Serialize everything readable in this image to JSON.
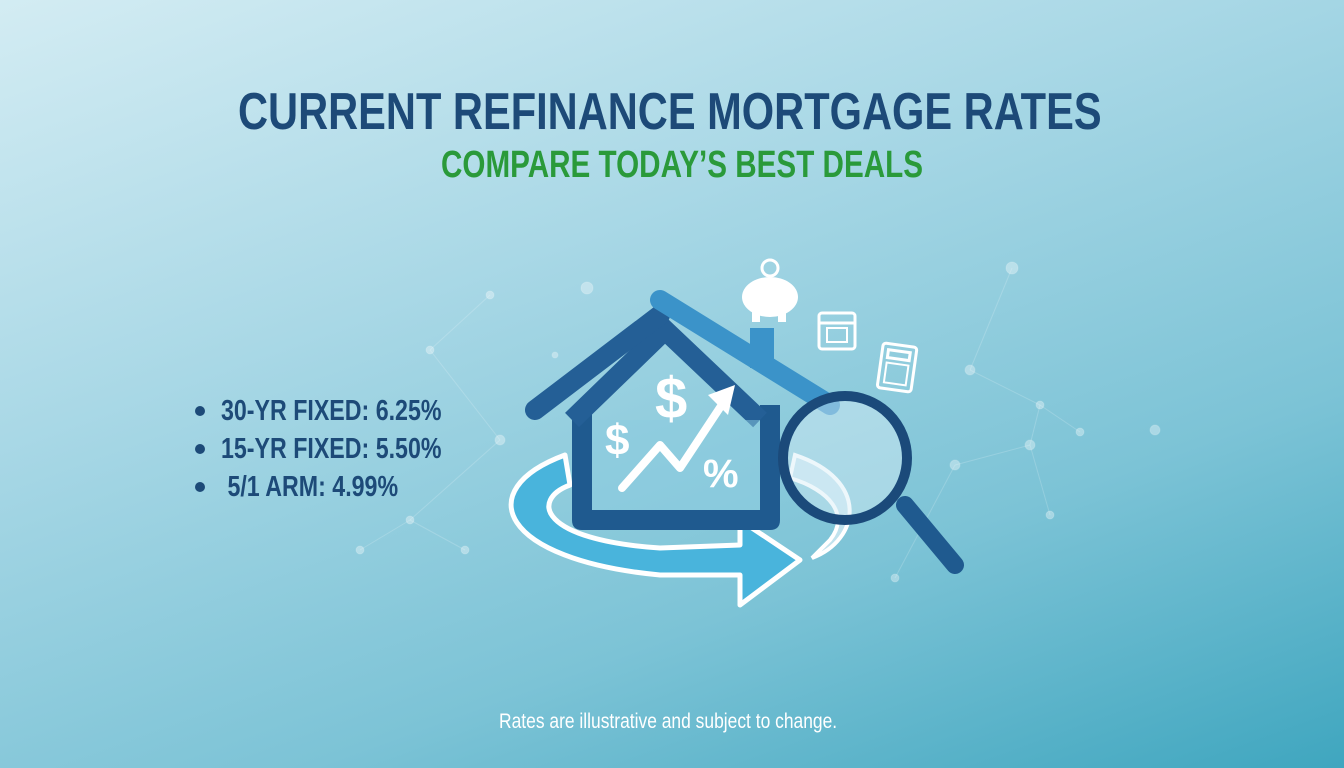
{
  "header": {
    "title": "CURRENT REFINANCE MORTGAGE RATES",
    "subtitle": "COMPARE TODAY’S BEST DEALS"
  },
  "rates": [
    {
      "label": "30-YR FIXED: 6.25%"
    },
    {
      "label": "15-YR FIXED: 5.50%"
    },
    {
      "label": " 5/1 ARM: 4.99%"
    }
  ],
  "footer": {
    "note": "Rates are illustrative and subject to change."
  },
  "illustration": {
    "icons": [
      "house-icon",
      "dollar-icon",
      "trend-arrow-icon",
      "percent-icon",
      "refresh-arrow-icon",
      "magnifier-icon",
      "piggy-bank-icon",
      "calendar-icon",
      "calculator-icon"
    ],
    "symbols": {
      "dollar": "$",
      "percent": "%"
    }
  },
  "colors": {
    "title": "#1d4a78",
    "subtitle": "#2a9a3a",
    "accent": "#3aa9d6"
  }
}
